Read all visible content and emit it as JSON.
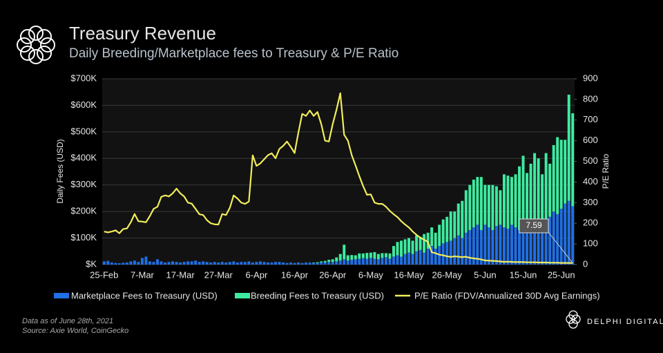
{
  "chart_data": {
    "type": "bar-line",
    "title": "Treasury Revenue",
    "subtitle": "Daily Breeding/Marketplace fees to Treasury & P/E Ratio",
    "y_label": "Daily Fees (USD)",
    "y2_label": "P/E Ratio",
    "annotation": "7.59",
    "note": "Data as of June 28th, 2021",
    "source": "Source:  Axie World, CoinGecko",
    "brand": "DELPHI DIGITAL",
    "stacked": true,
    "grid": true,
    "categories": [
      "25-Feb",
      null,
      null,
      null,
      null,
      null,
      null,
      null,
      null,
      null,
      "7-Mar",
      null,
      null,
      null,
      null,
      null,
      null,
      null,
      null,
      null,
      "17-Mar",
      null,
      null,
      null,
      null,
      null,
      null,
      null,
      null,
      null,
      "27-Mar",
      null,
      null,
      null,
      null,
      null,
      null,
      null,
      null,
      null,
      "6-Apr",
      null,
      null,
      null,
      null,
      null,
      null,
      null,
      null,
      null,
      "16-Apr",
      null,
      null,
      null,
      null,
      null,
      null,
      null,
      null,
      null,
      "26-Apr",
      null,
      null,
      null,
      null,
      null,
      null,
      null,
      null,
      null,
      "6-May",
      null,
      null,
      null,
      null,
      null,
      null,
      null,
      null,
      null,
      "16-May",
      null,
      null,
      null,
      null,
      null,
      null,
      null,
      null,
      null,
      "26-May",
      null,
      null,
      null,
      null,
      null,
      null,
      null,
      null,
      null,
      "5-Jun",
      null,
      null,
      null,
      null,
      null,
      null,
      null,
      null,
      null,
      "15-Jun",
      null,
      null,
      null,
      null,
      null,
      null,
      null,
      null,
      null,
      "25-Jun",
      null,
      null,
      null
    ],
    "ylim": [
      0,
      700000
    ],
    "yticks": [
      {
        "value": 0,
        "label": "$K"
      },
      {
        "value": 100000,
        "label": "$100K"
      },
      {
        "value": 200000,
        "label": "$200K"
      },
      {
        "value": 300000,
        "label": "$300K"
      },
      {
        "value": 400000,
        "label": "$400K"
      },
      {
        "value": 500000,
        "label": "$500K"
      },
      {
        "value": 600000,
        "label": "$600K"
      },
      {
        "value": 700000,
        "label": "$700K"
      }
    ],
    "y2lim": [
      0,
      900
    ],
    "y2ticks": [
      0,
      100,
      200,
      300,
      400,
      500,
      600,
      700,
      800,
      900
    ],
    "series": [
      {
        "name": "Marketplace Fees to Treasury (USD)",
        "color": "#1f6fe5",
        "kind": "bar",
        "values": [
          12000,
          14000,
          8000,
          6000,
          5000,
          7000,
          8000,
          12000,
          15000,
          10000,
          25000,
          30000,
          12000,
          10000,
          20000,
          12000,
          8000,
          10000,
          12000,
          10000,
          8000,
          10000,
          12000,
          12000,
          15000,
          10000,
          12000,
          10000,
          8000,
          10000,
          8000,
          10000,
          8000,
          10000,
          12000,
          8000,
          10000,
          10000,
          12000,
          8000,
          10000,
          12000,
          10000,
          8000,
          8000,
          10000,
          10000,
          8000,
          6000,
          8000,
          6000,
          8000,
          6000,
          8000,
          8000,
          6000,
          6000,
          8000,
          8000,
          10000,
          10000,
          12000,
          15000,
          20000,
          15000,
          18000,
          20000,
          22000,
          24000,
          22000,
          25000,
          22000,
          20000,
          25000,
          28000,
          22000,
          30000,
          35000,
          30000,
          40000,
          45000,
          40000,
          50000,
          55000,
          45000,
          60000,
          70000,
          60000,
          70000,
          80000,
          85000,
          90000,
          100000,
          110000,
          100000,
          120000,
          130000,
          140000,
          150000,
          130000,
          150000,
          140000,
          130000,
          145000,
          150000,
          140000,
          135000,
          150000,
          140000,
          130000,
          150000,
          145000,
          140000,
          160000,
          150000,
          140000,
          170000,
          180000,
          200000,
          190000,
          210000,
          230000,
          240000,
          220000
        ]
      },
      {
        "name": "Breeding Fees to Treasury (USD)",
        "color": "#3debA0",
        "kind": "bar",
        "values": [
          0,
          0,
          0,
          0,
          0,
          0,
          0,
          0,
          0,
          0,
          0,
          0,
          0,
          0,
          0,
          0,
          0,
          0,
          0,
          0,
          0,
          0,
          0,
          0,
          0,
          0,
          0,
          0,
          0,
          0,
          0,
          0,
          0,
          0,
          0,
          0,
          0,
          0,
          0,
          0,
          0,
          0,
          0,
          0,
          0,
          0,
          0,
          0,
          0,
          0,
          0,
          0,
          0,
          0,
          0,
          2000,
          3000,
          4000,
          6000,
          8000,
          10000,
          15000,
          25000,
          55000,
          20000,
          18000,
          15000,
          20000,
          18000,
          22000,
          20000,
          25000,
          20000,
          18000,
          15000,
          20000,
          40000,
          50000,
          60000,
          55000,
          55000,
          50000,
          60000,
          50000,
          70000,
          60000,
          70000,
          60000,
          80000,
          90000,
          95000,
          110000,
          100000,
          120000,
          140000,
          160000,
          170000,
          180000,
          180000,
          200000,
          150000,
          160000,
          170000,
          150000,
          130000,
          200000,
          200000,
          180000,
          200000,
          240000,
          260000,
          200000,
          240000,
          260000,
          250000,
          200000,
          250000,
          200000,
          250000,
          290000,
          260000,
          240000,
          400000,
          350000
        ]
      },
      {
        "name": "P/E Ratio (FDV/Annualized 30D Avg Earnings)",
        "color": "#f2ee5c",
        "kind": "line",
        "axis": "y2",
        "values": [
          160,
          156,
          160,
          166,
          152,
          172,
          175,
          205,
          245,
          210,
          208,
          205,
          235,
          270,
          280,
          328,
          335,
          330,
          345,
          368,
          345,
          330,
          300,
          295,
          270,
          244,
          240,
          215,
          200,
          195,
          194,
          245,
          240,
          275,
          335,
          320,
          300,
          294,
          305,
          529,
          478,
          490,
          510,
          530,
          539,
          515,
          560,
          575,
          596,
          570,
          540,
          640,
          730,
          720,
          746,
          720,
          739,
          680,
          600,
          596,
          680,
          750,
          830,
          629,
          600,
          530,
          480,
          428,
          380,
          338,
          340,
          300,
          294,
          294,
          280,
          260,
          244,
          230,
          210,
          194,
          180,
          160,
          144,
          130,
          120,
          110,
          60,
          55,
          48,
          45,
          40,
          37,
          40,
          38,
          36,
          38,
          33,
          30,
          28,
          25,
          20,
          19,
          18,
          17,
          15,
          13,
          14,
          13,
          12,
          12,
          12,
          11,
          11,
          11,
          10,
          10,
          10,
          9,
          9,
          9,
          8,
          8,
          8,
          7.59
        ]
      }
    ]
  }
}
